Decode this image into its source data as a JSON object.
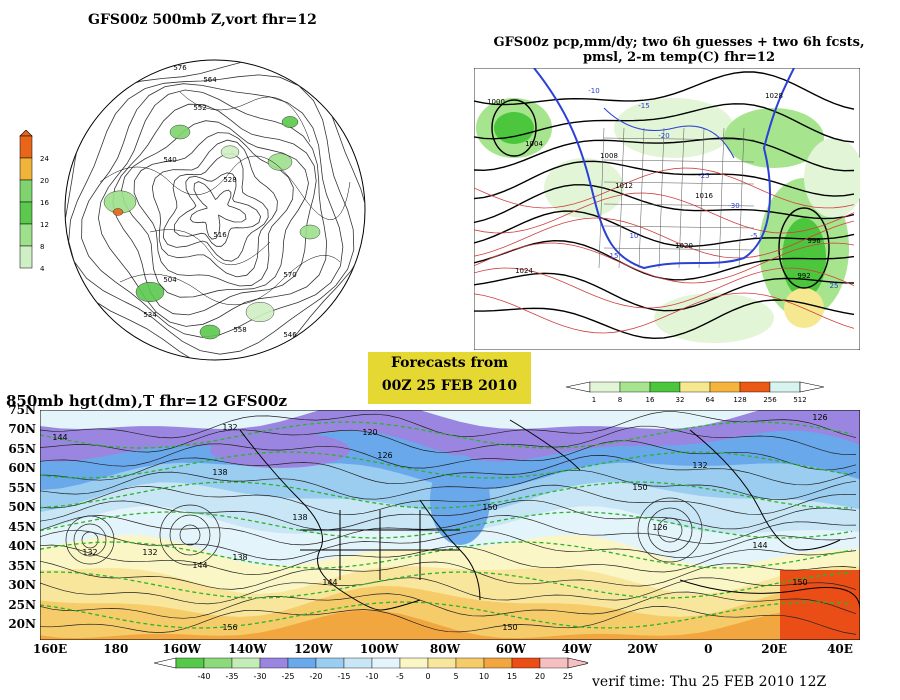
{
  "panel_500mb": {
    "title": "GFS00z   500mb  Z,vort     fhr=12",
    "colorbar_ticks": [
      "24",
      "20",
      "16",
      "12",
      "8",
      "4"
    ],
    "colorbar_colors": [
      "#e8661a",
      "#f1b43a",
      "#7fd46e",
      "#5cc84e",
      "#9ee08c",
      "#cfefc4"
    ],
    "contour_labels": [
      "576",
      "564",
      "552",
      "540",
      "528",
      "516",
      "504",
      "570",
      "558",
      "546",
      "534"
    ]
  },
  "panel_precip": {
    "title_line1": "GFS00z pcp,mm/dy; two 6h guesses + two 6h fcsts,",
    "title_line2": "pmsl, 2-m temp(C)  fhr=12",
    "isobar_labels": [
      "1000",
      "1004",
      "1008",
      "1012",
      "1016",
      "1020",
      "1024",
      "1028",
      "996",
      "992"
    ],
    "temp_labels": [
      "-10",
      "-15",
      "-20",
      "-25",
      "-30",
      "-5",
      "10",
      "15",
      "25"
    ],
    "colorbar_ticks": [
      "1",
      "8",
      "16",
      "32",
      "64",
      "128",
      "256",
      "512"
    ],
    "colorbar_colors": [
      "#e2f5d6",
      "#a6e48e",
      "#4cc63c",
      "#f5e890",
      "#f5b43c",
      "#ea5a14",
      "#d8f4f0"
    ]
  },
  "forecast_box": {
    "line1": "Forecasts from",
    "line2": "00Z 25 FEB 2010"
  },
  "panel_850mb": {
    "title": "850mb hgt(dm),T  fhr=12 GFS00z",
    "lat_labels": [
      "75N",
      "70N",
      "65N",
      "60N",
      "55N",
      "50N",
      "45N",
      "40N",
      "35N",
      "30N",
      "25N",
      "20N"
    ],
    "lon_labels": [
      "160E",
      "180",
      "160W",
      "140W",
      "120W",
      "100W",
      "80W",
      "60W",
      "40W",
      "20W",
      "0",
      "20E",
      "40E"
    ],
    "contour_labels": [
      "144",
      "132",
      "120",
      "126",
      "138",
      "150",
      "132",
      "144",
      "150",
      "138",
      "126",
      "132",
      "144",
      "150",
      "156",
      "150",
      "144",
      "138",
      "132",
      "126"
    ],
    "colorbar_ticks": [
      "-40",
      "-35",
      "-30",
      "-25",
      "-20",
      "-15",
      "-10",
      "-5",
      "0",
      "5",
      "10",
      "15",
      "20",
      "25"
    ],
    "colorbar_colors": [
      "#56c84a",
      "#8cda7c",
      "#c4ecb6",
      "#9a86e0",
      "#6aa8ec",
      "#9acdf0",
      "#c8e6f5",
      "#e4f4fb",
      "#fbf6c6",
      "#f8e69c",
      "#f6cc6a",
      "#f2a640",
      "#ea4e16",
      "#f6c0c0"
    ]
  },
  "verif_time": "verif time: Thu 25 FEB 2010 12Z"
}
